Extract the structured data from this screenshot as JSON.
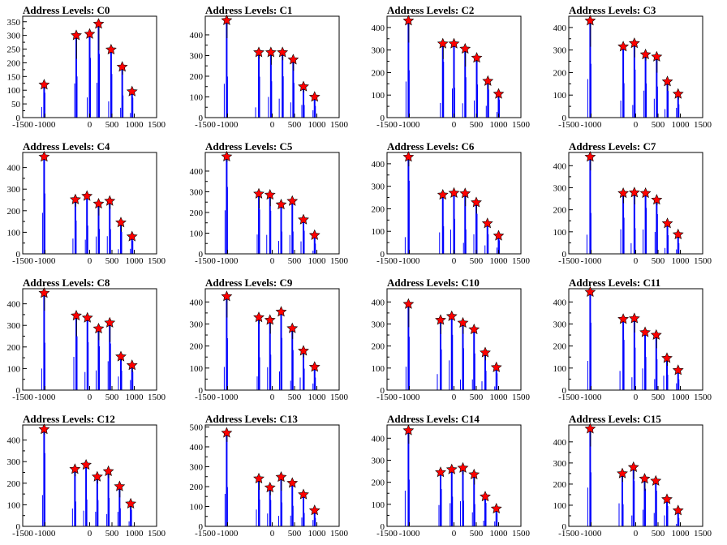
{
  "chart_data": [
    {
      "type": "bar",
      "title": "Address Levels: C0",
      "xlim": [
        -1500,
        1500
      ],
      "yticks": [
        0,
        50,
        100,
        150,
        200,
        250,
        300,
        350
      ],
      "ylim": [
        0,
        370
      ],
      "peaks": [
        {
          "x": -1020,
          "y": 120,
          "marker": true
        },
        {
          "x": -300,
          "y": 300,
          "marker": true
        },
        {
          "x": 0,
          "y": 305,
          "marker": true
        },
        {
          "x": 200,
          "y": 342,
          "marker": true
        },
        {
          "x": 480,
          "y": 248,
          "marker": true
        },
        {
          "x": 730,
          "y": 185,
          "marker": true
        },
        {
          "x": 950,
          "y": 95,
          "marker": true
        }
      ]
    },
    {
      "type": "bar",
      "title": "Address Levels: C1",
      "xlim": [
        -1500,
        1500
      ],
      "yticks": [
        0,
        100,
        200,
        300,
        400
      ],
      "ylim": [
        0,
        490
      ],
      "peaks": [
        {
          "x": -1020,
          "y": 470,
          "marker": true
        },
        {
          "x": -300,
          "y": 315,
          "marker": true
        },
        {
          "x": -30,
          "y": 315,
          "marker": true
        },
        {
          "x": 230,
          "y": 315,
          "marker": true
        },
        {
          "x": 470,
          "y": 280,
          "marker": true
        },
        {
          "x": 700,
          "y": 150,
          "marker": true
        },
        {
          "x": 950,
          "y": 100,
          "marker": true
        }
      ]
    },
    {
      "type": "bar",
      "title": "Address Levels: C2",
      "xlim": [
        -1500,
        1500
      ],
      "yticks": [
        0,
        100,
        200,
        300,
        400
      ],
      "ylim": [
        0,
        450
      ],
      "peaks": [
        {
          "x": -1020,
          "y": 430,
          "marker": true
        },
        {
          "x": -250,
          "y": 328,
          "marker": true
        },
        {
          "x": 0,
          "y": 328,
          "marker": true
        },
        {
          "x": 250,
          "y": 305,
          "marker": true
        },
        {
          "x": 510,
          "y": 265,
          "marker": true
        },
        {
          "x": 760,
          "y": 162,
          "marker": true
        },
        {
          "x": 1000,
          "y": 105,
          "marker": true
        }
      ]
    },
    {
      "type": "bar",
      "title": "Address Levels: C3",
      "xlim": [
        -1500,
        1500
      ],
      "yticks": [
        0,
        100,
        200,
        300,
        400
      ],
      "ylim": [
        0,
        450
      ],
      "peaks": [
        {
          "x": -1020,
          "y": 430,
          "marker": true
        },
        {
          "x": -280,
          "y": 315,
          "marker": true
        },
        {
          "x": -30,
          "y": 330,
          "marker": true
        },
        {
          "x": 220,
          "y": 280,
          "marker": true
        },
        {
          "x": 470,
          "y": 270,
          "marker": true
        },
        {
          "x": 710,
          "y": 160,
          "marker": true
        },
        {
          "x": 950,
          "y": 105,
          "marker": true
        }
      ]
    },
    {
      "type": "bar",
      "title": "Address Levels: C4",
      "xlim": [
        -1500,
        1500
      ],
      "yticks": [
        0,
        100,
        200,
        300,
        400
      ],
      "ylim": [
        0,
        470
      ],
      "peaks": [
        {
          "x": -1020,
          "y": 450,
          "marker": true
        },
        {
          "x": -320,
          "y": 252,
          "marker": true
        },
        {
          "x": -60,
          "y": 268,
          "marker": true
        },
        {
          "x": 200,
          "y": 232,
          "marker": true
        },
        {
          "x": 450,
          "y": 245,
          "marker": true
        },
        {
          "x": 700,
          "y": 145,
          "marker": true
        },
        {
          "x": 950,
          "y": 80,
          "marker": true
        }
      ]
    },
    {
      "type": "bar",
      "title": "Address Levels: C5",
      "xlim": [
        -1500,
        1500
      ],
      "yticks": [
        0,
        100,
        200,
        300,
        400
      ],
      "ylim": [
        0,
        490
      ],
      "peaks": [
        {
          "x": -1020,
          "y": 470,
          "marker": true
        },
        {
          "x": -300,
          "y": 290,
          "marker": true
        },
        {
          "x": -50,
          "y": 285,
          "marker": true
        },
        {
          "x": 200,
          "y": 238,
          "marker": true
        },
        {
          "x": 450,
          "y": 255,
          "marker": true
        },
        {
          "x": 700,
          "y": 165,
          "marker": true
        },
        {
          "x": 950,
          "y": 90,
          "marker": true
        }
      ]
    },
    {
      "type": "bar",
      "title": "Address Levels: C6",
      "xlim": [
        -1500,
        1500
      ],
      "yticks": [
        0,
        100,
        200,
        300,
        400
      ],
      "ylim": [
        0,
        450
      ],
      "peaks": [
        {
          "x": -1020,
          "y": 430,
          "marker": true
        },
        {
          "x": -250,
          "y": 262,
          "marker": true
        },
        {
          "x": 0,
          "y": 270,
          "marker": true
        },
        {
          "x": 250,
          "y": 268,
          "marker": true
        },
        {
          "x": 500,
          "y": 228,
          "marker": true
        },
        {
          "x": 750,
          "y": 135,
          "marker": true
        },
        {
          "x": 1000,
          "y": 80,
          "marker": true
        }
      ]
    },
    {
      "type": "bar",
      "title": "Address Levels: C7",
      "xlim": [
        -1500,
        1500
      ],
      "yticks": [
        0,
        100,
        200,
        300,
        400
      ],
      "ylim": [
        0,
        460
      ],
      "peaks": [
        {
          "x": -1020,
          "y": 440,
          "marker": true
        },
        {
          "x": -280,
          "y": 275,
          "marker": true
        },
        {
          "x": -30,
          "y": 278,
          "marker": true
        },
        {
          "x": 220,
          "y": 275,
          "marker": true
        },
        {
          "x": 470,
          "y": 245,
          "marker": true
        },
        {
          "x": 710,
          "y": 138,
          "marker": true
        },
        {
          "x": 950,
          "y": 88,
          "marker": true
        }
      ]
    },
    {
      "type": "bar",
      "title": "Address Levels: C8",
      "xlim": [
        -1500,
        1500
      ],
      "yticks": [
        0,
        100,
        200,
        300,
        400
      ],
      "ylim": [
        0,
        470
      ],
      "peaks": [
        {
          "x": -1020,
          "y": 450,
          "marker": true
        },
        {
          "x": -300,
          "y": 345,
          "marker": true
        },
        {
          "x": -50,
          "y": 335,
          "marker": true
        },
        {
          "x": 200,
          "y": 285,
          "marker": true
        },
        {
          "x": 450,
          "y": 312,
          "marker": true
        },
        {
          "x": 700,
          "y": 155,
          "marker": true
        },
        {
          "x": 950,
          "y": 115,
          "marker": true
        }
      ]
    },
    {
      "type": "bar",
      "title": "Address Levels: C9",
      "xlim": [
        -1500,
        1500
      ],
      "yticks": [
        0,
        100,
        200,
        300,
        400
      ],
      "ylim": [
        0,
        460
      ],
      "peaks": [
        {
          "x": -1020,
          "y": 425,
          "marker": true
        },
        {
          "x": -300,
          "y": 330,
          "marker": true
        },
        {
          "x": -50,
          "y": 318,
          "marker": true
        },
        {
          "x": 200,
          "y": 355,
          "marker": true
        },
        {
          "x": 450,
          "y": 280,
          "marker": true
        },
        {
          "x": 700,
          "y": 178,
          "marker": true
        },
        {
          "x": 950,
          "y": 105,
          "marker": true
        }
      ]
    },
    {
      "type": "bar",
      "title": "Address Levels: C10",
      "xlim": [
        -1500,
        1500
      ],
      "yticks": [
        0,
        100,
        200,
        300,
        400
      ],
      "ylim": [
        0,
        460
      ],
      "peaks": [
        {
          "x": -1020,
          "y": 390,
          "marker": true
        },
        {
          "x": -300,
          "y": 318,
          "marker": true
        },
        {
          "x": -50,
          "y": 335,
          "marker": true
        },
        {
          "x": 200,
          "y": 305,
          "marker": true
        },
        {
          "x": 450,
          "y": 275,
          "marker": true
        },
        {
          "x": 700,
          "y": 170,
          "marker": true
        },
        {
          "x": 950,
          "y": 103,
          "marker": true
        }
      ]
    },
    {
      "type": "bar",
      "title": "Address Levels: C11",
      "xlim": [
        -1500,
        1500
      ],
      "yticks": [
        0,
        100,
        200,
        300,
        400
      ],
      "ylim": [
        0,
        460
      ],
      "peaks": [
        {
          "x": -1020,
          "y": 445,
          "marker": true
        },
        {
          "x": -280,
          "y": 322,
          "marker": true
        },
        {
          "x": -30,
          "y": 325,
          "marker": true
        },
        {
          "x": 210,
          "y": 262,
          "marker": true
        },
        {
          "x": 460,
          "y": 250,
          "marker": true
        },
        {
          "x": 700,
          "y": 145,
          "marker": true
        },
        {
          "x": 950,
          "y": 90,
          "marker": true
        }
      ]
    },
    {
      "type": "bar",
      "title": "Address Levels: C12",
      "xlim": [
        -1500,
        1500
      ],
      "yticks": [
        0,
        100,
        200,
        300,
        400
      ],
      "ylim": [
        0,
        470
      ],
      "peaks": [
        {
          "x": -1020,
          "y": 450,
          "marker": true
        },
        {
          "x": -330,
          "y": 265,
          "marker": true
        },
        {
          "x": -80,
          "y": 285,
          "marker": true
        },
        {
          "x": 170,
          "y": 230,
          "marker": true
        },
        {
          "x": 420,
          "y": 255,
          "marker": true
        },
        {
          "x": 670,
          "y": 185,
          "marker": true
        },
        {
          "x": 920,
          "y": 105,
          "marker": true
        }
      ]
    },
    {
      "type": "bar",
      "title": "Address Levels: C13",
      "xlim": [
        -1500,
        1500
      ],
      "yticks": [
        0,
        100,
        200,
        300,
        400,
        500
      ],
      "ylim": [
        0,
        510
      ],
      "peaks": [
        {
          "x": -1020,
          "y": 470,
          "marker": true
        },
        {
          "x": -300,
          "y": 240,
          "marker": true
        },
        {
          "x": -50,
          "y": 195,
          "marker": true
        },
        {
          "x": 200,
          "y": 248,
          "marker": true
        },
        {
          "x": 450,
          "y": 218,
          "marker": true
        },
        {
          "x": 700,
          "y": 160,
          "marker": true
        },
        {
          "x": 950,
          "y": 80,
          "marker": true
        }
      ]
    },
    {
      "type": "bar",
      "title": "Address Levels: C14",
      "xlim": [
        -1500,
        1500
      ],
      "yticks": [
        0,
        100,
        200,
        300,
        400
      ],
      "ylim": [
        0,
        460
      ],
      "peaks": [
        {
          "x": -1020,
          "y": 435,
          "marker": true
        },
        {
          "x": -300,
          "y": 245,
          "marker": true
        },
        {
          "x": -50,
          "y": 258,
          "marker": true
        },
        {
          "x": 200,
          "y": 265,
          "marker": true
        },
        {
          "x": 450,
          "y": 235,
          "marker": true
        },
        {
          "x": 700,
          "y": 135,
          "marker": true
        },
        {
          "x": 950,
          "y": 80,
          "marker": true
        }
      ]
    },
    {
      "type": "bar",
      "title": "Address Levels: C15",
      "xlim": [
        -1500,
        1500
      ],
      "yticks": [
        0,
        100,
        200,
        300,
        400
      ],
      "ylim": [
        0,
        480
      ],
      "peaks": [
        {
          "x": -1020,
          "y": 462,
          "marker": true
        },
        {
          "x": -300,
          "y": 250,
          "marker": true
        },
        {
          "x": -50,
          "y": 280,
          "marker": true
        },
        {
          "x": 200,
          "y": 225,
          "marker": true
        },
        {
          "x": 450,
          "y": 215,
          "marker": true
        },
        {
          "x": 700,
          "y": 128,
          "marker": true
        },
        {
          "x": 950,
          "y": 75,
          "marker": true
        }
      ]
    }
  ],
  "xticks": [
    -1500,
    -1000,
    0,
    500,
    1000,
    1500
  ],
  "colors": {
    "histogram": "#0000ff",
    "marker": "#ff0000",
    "marker_edge": "#000000",
    "axis": "#000000"
  }
}
